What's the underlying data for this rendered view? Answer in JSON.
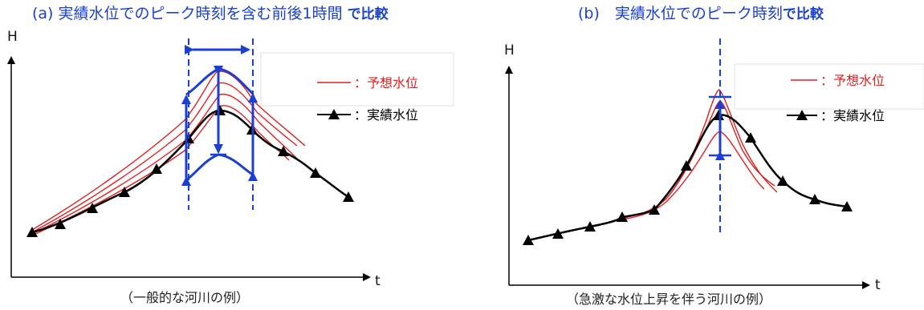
{
  "panel_a": {
    "title_main": "(a) 実績水位でのピーク時刻を含む前後1時間 ",
    "title_bold": "で比較",
    "y_axis": "H",
    "x_axis": "t",
    "legend_forecast": "：予想水位",
    "legend_actual": "：実績水位",
    "caption": "（一般的な河川の例）"
  },
  "panel_b": {
    "title_main": "(b)　実績水位でのピーク時刻",
    "title_bold": "で比較",
    "y_axis": "H",
    "x_axis": "t",
    "legend_forecast": "：予想水位",
    "legend_actual": "：実績水位",
    "caption": "（急激な水位上昇を伴う河川の例）"
  },
  "colors": {
    "forecast": "#e02020",
    "actual": "#000000",
    "annotation": "#1a3fd1"
  }
}
